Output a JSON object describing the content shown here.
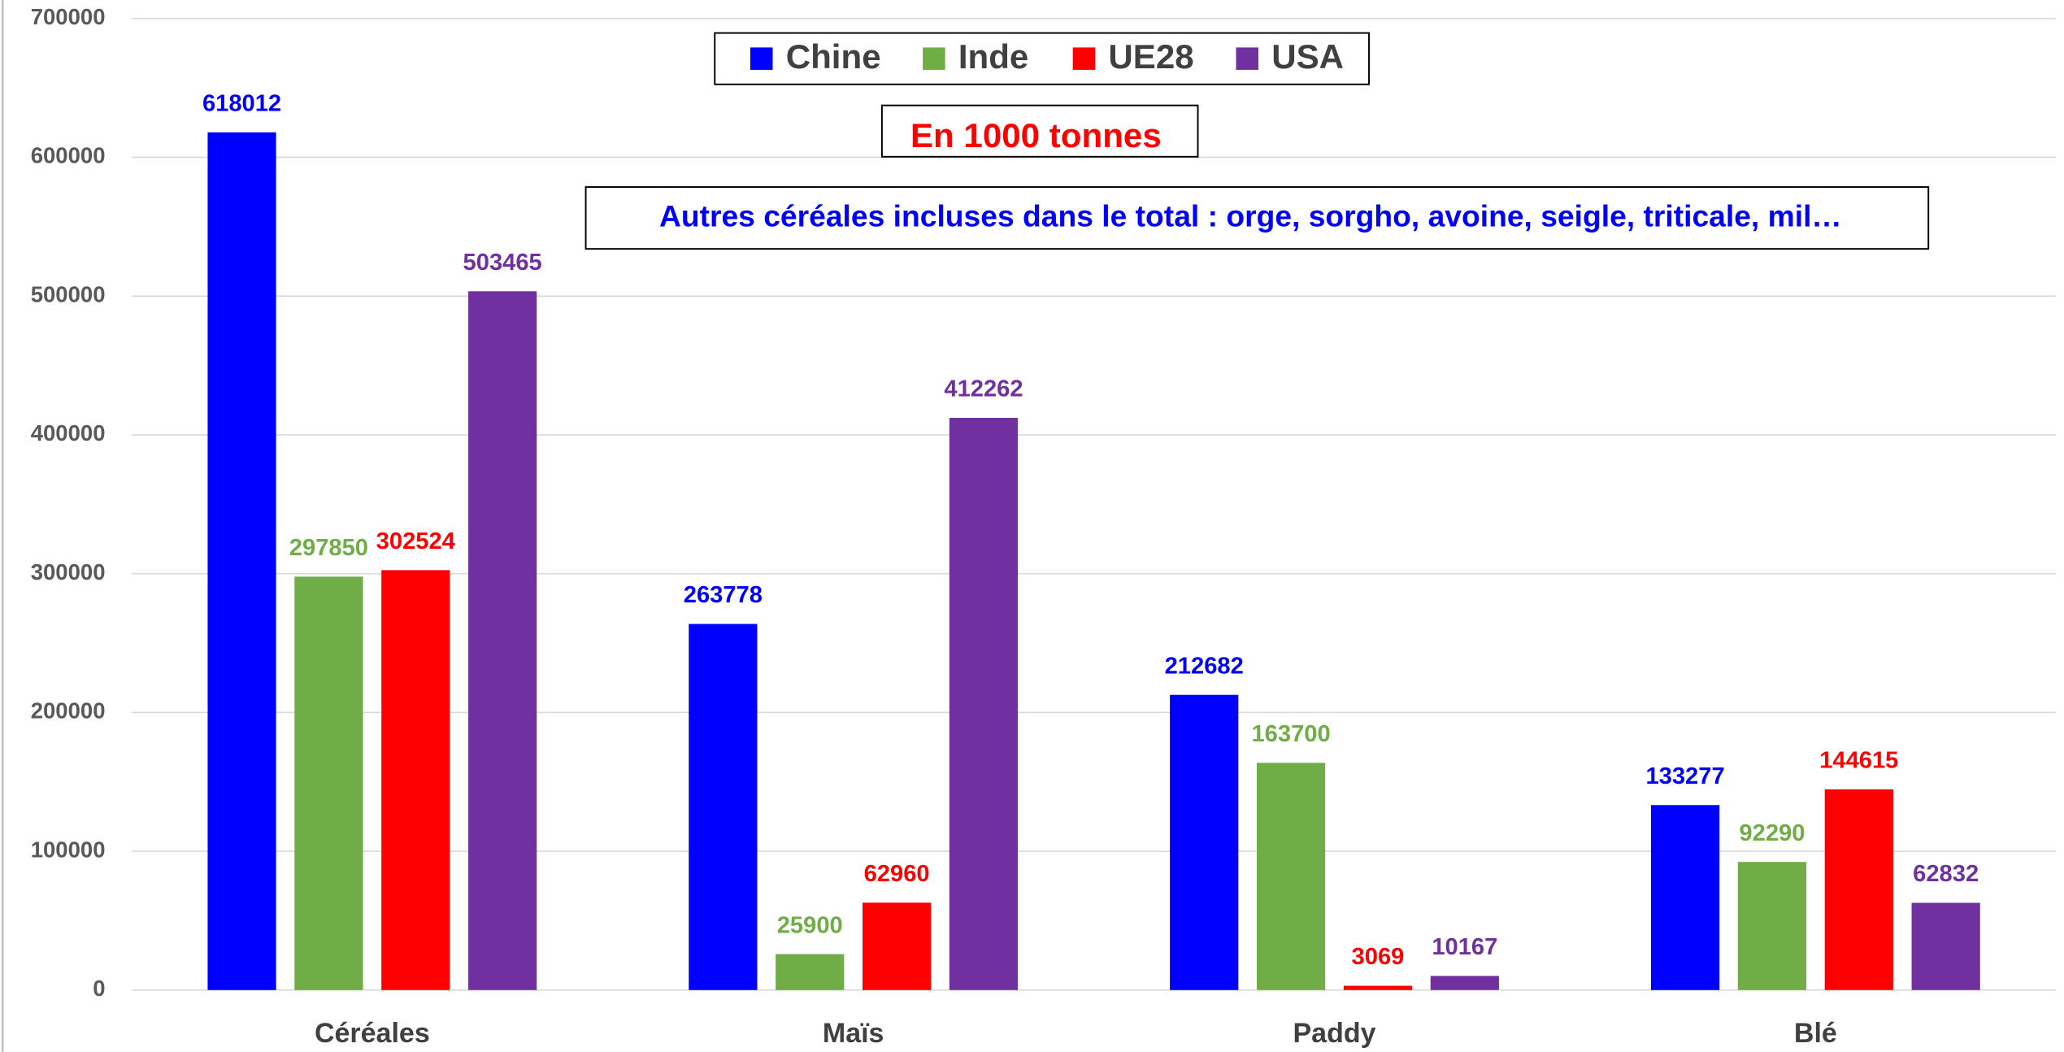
{
  "chart_data": {
    "type": "bar",
    "categories": [
      "Céréales",
      "Maïs",
      "Paddy",
      "Blé"
    ],
    "series": [
      {
        "name": "Chine",
        "color": "#0000ff",
        "values": [
          618012,
          263778,
          212682,
          133277
        ]
      },
      {
        "name": "Inde",
        "color": "#70ad47",
        "values": [
          297850,
          25900,
          163700,
          92290
        ]
      },
      {
        "name": "UE28",
        "color": "#ff0000",
        "values": [
          302524,
          62960,
          3069,
          144615
        ]
      },
      {
        "name": "USA",
        "color": "#7030a0",
        "values": [
          503465,
          412262,
          10167,
          62832
        ]
      }
    ],
    "annotations": [
      "En 1000 tonnes",
      "Autres céréales incluses dans le total : orge, sorgho, avoine, seigle, triticale, mil…"
    ],
    "ylim": [
      0,
      700000
    ],
    "yticks": [
      0,
      100000,
      200000,
      300000,
      400000,
      500000,
      600000,
      700000
    ],
    "grid": true,
    "legend": "top"
  }
}
